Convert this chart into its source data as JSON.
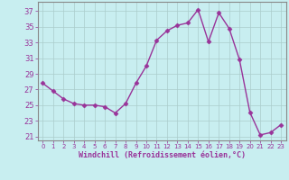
{
  "x": [
    0,
    1,
    2,
    3,
    4,
    5,
    6,
    7,
    8,
    9,
    10,
    11,
    12,
    13,
    14,
    15,
    16,
    17,
    18,
    19,
    20,
    21,
    22,
    23
  ],
  "y": [
    27.8,
    26.8,
    25.8,
    25.2,
    25.0,
    25.0,
    24.8,
    24.0,
    25.2,
    27.8,
    30.0,
    33.3,
    34.5,
    35.2,
    35.5,
    37.2,
    33.1,
    36.8,
    34.8,
    30.8,
    24.1,
    21.2,
    21.5,
    22.5
  ],
  "line_color": "#993399",
  "marker": "D",
  "markersize": 2.5,
  "linewidth": 1.0,
  "bg_color": "#c8eef0",
  "grid_color": "#aacccc",
  "xlabel": "Windchill (Refroidissement éolien,°C)",
  "xlabel_color": "#993399",
  "ylabel_ticks": [
    21,
    23,
    25,
    27,
    29,
    31,
    33,
    35,
    37
  ],
  "xlim": [
    -0.5,
    23.5
  ],
  "ylim": [
    20.5,
    38.2
  ],
  "xtick_labels": [
    "0",
    "1",
    "2",
    "3",
    "4",
    "5",
    "6",
    "7",
    "8",
    "9",
    "10",
    "11",
    "12",
    "13",
    "14",
    "15",
    "16",
    "17",
    "18",
    "19",
    "20",
    "21",
    "22",
    "23"
  ],
  "tick_color": "#993399",
  "spine_color": "#888888"
}
